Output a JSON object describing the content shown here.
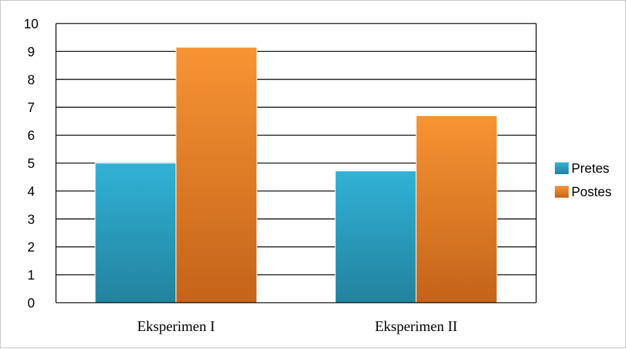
{
  "chart_data": {
    "type": "bar",
    "categories": [
      "Eksperimen I",
      "Eksperimen II"
    ],
    "series": [
      {
        "name": "Pretes",
        "values": [
          5.0,
          4.72
        ],
        "color": "#31b2d6",
        "color_dark": "#22829e"
      },
      {
        "name": "Postes",
        "values": [
          9.15,
          6.7
        ],
        "color": "#f79433",
        "color_dark": "#c4631a"
      }
    ],
    "ylim": [
      0,
      10
    ],
    "yticks": [
      "0",
      "1",
      "2",
      "3",
      "4",
      "5",
      "6",
      "7",
      "8",
      "9",
      "10"
    ],
    "grid": true,
    "legend": "right"
  }
}
